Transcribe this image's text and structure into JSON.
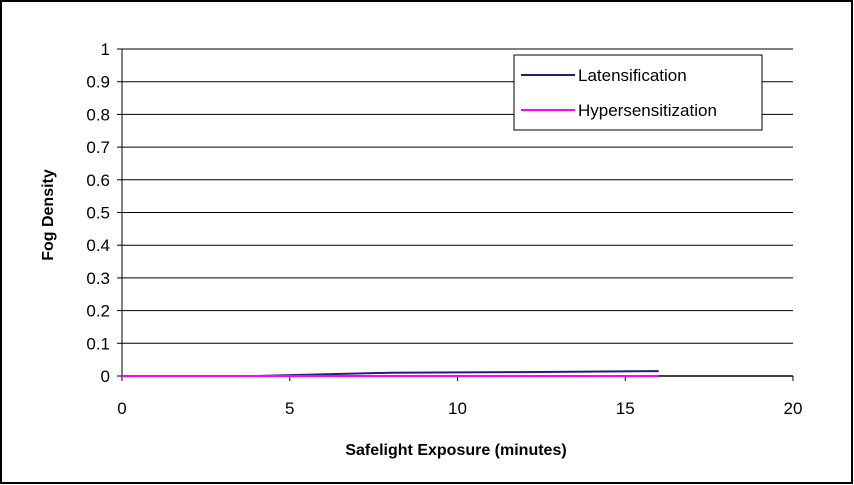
{
  "chart_data": {
    "type": "line",
    "title": "",
    "xlabel": "Safelight Exposure (minutes)",
    "ylabel": "Fog Density",
    "xlim": [
      0,
      20
    ],
    "ylim": [
      0,
      1
    ],
    "x_ticks": [
      "0",
      "5",
      "10",
      "15",
      "20"
    ],
    "y_ticks": [
      "0",
      "0.1",
      "0.2",
      "0.3",
      "0.4",
      "0.5",
      "0.6",
      "0.7",
      "0.8",
      "0.9",
      "1"
    ],
    "grid": "horizontal",
    "legend_position": "top-right",
    "series": [
      {
        "name": "Latensification",
        "color": "#1f1f7a",
        "x": [
          0,
          4,
          8,
          12,
          16
        ],
        "y": [
          0,
          0,
          0.01,
          0.012,
          0.015
        ]
      },
      {
        "name": "Hypersensitization",
        "color": "#ff00ff",
        "x": [
          0,
          4,
          8,
          12,
          16
        ],
        "y": [
          0,
          0,
          0,
          0,
          0
        ]
      }
    ]
  }
}
